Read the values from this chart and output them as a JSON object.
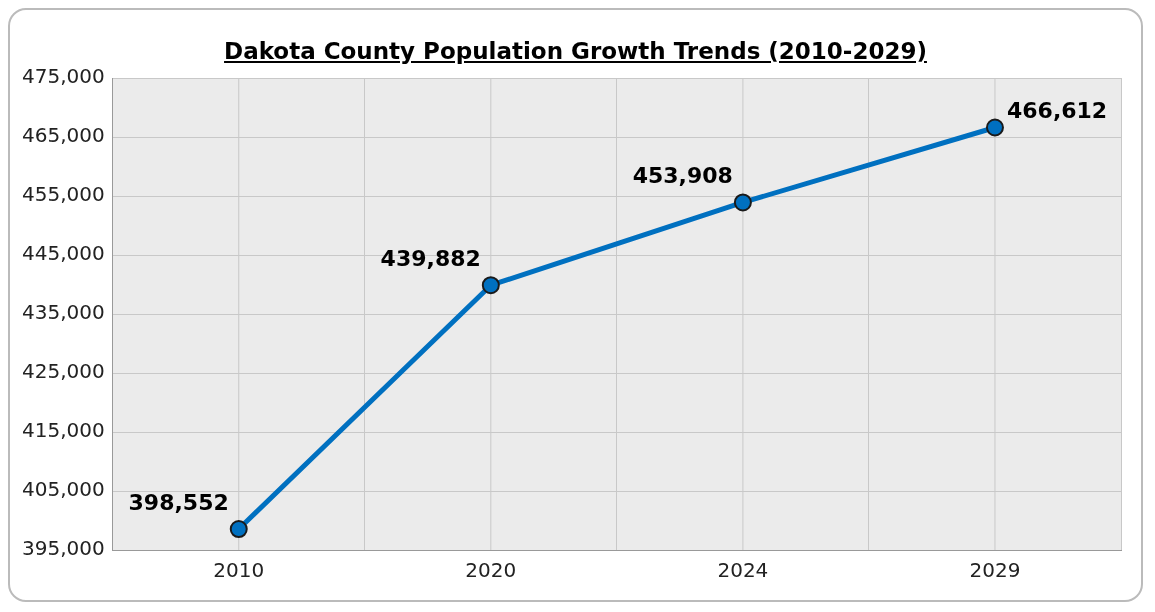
{
  "chart_data": {
    "type": "line",
    "title": "Dakota County Population Growth Trends (2010-2029)",
    "categories": [
      "2010",
      "2020",
      "2024",
      "2029"
    ],
    "series": [
      {
        "color": "#0070c0",
        "values": [
          398552,
          439882,
          453908,
          466612
        ],
        "value_labels": [
          "398,552",
          "439,882",
          "453,908",
          "466,612"
        ]
      }
    ],
    "ylim": [
      395000,
      475000
    ],
    "yticks": [
      {
        "value": 395000,
        "label": "395,000"
      },
      {
        "value": 405000,
        "label": "405,000"
      },
      {
        "value": 415000,
        "label": "415,000"
      },
      {
        "value": 425000,
        "label": "425,000"
      },
      {
        "value": 435000,
        "label": "435,000"
      },
      {
        "value": 445000,
        "label": "445,000"
      },
      {
        "value": 455000,
        "label": "455,000"
      },
      {
        "value": 465000,
        "label": "465,000"
      },
      {
        "value": 475000,
        "label": "475,000"
      }
    ],
    "grid": true,
    "marker": "circle",
    "line_style": "solid",
    "legend": false
  }
}
